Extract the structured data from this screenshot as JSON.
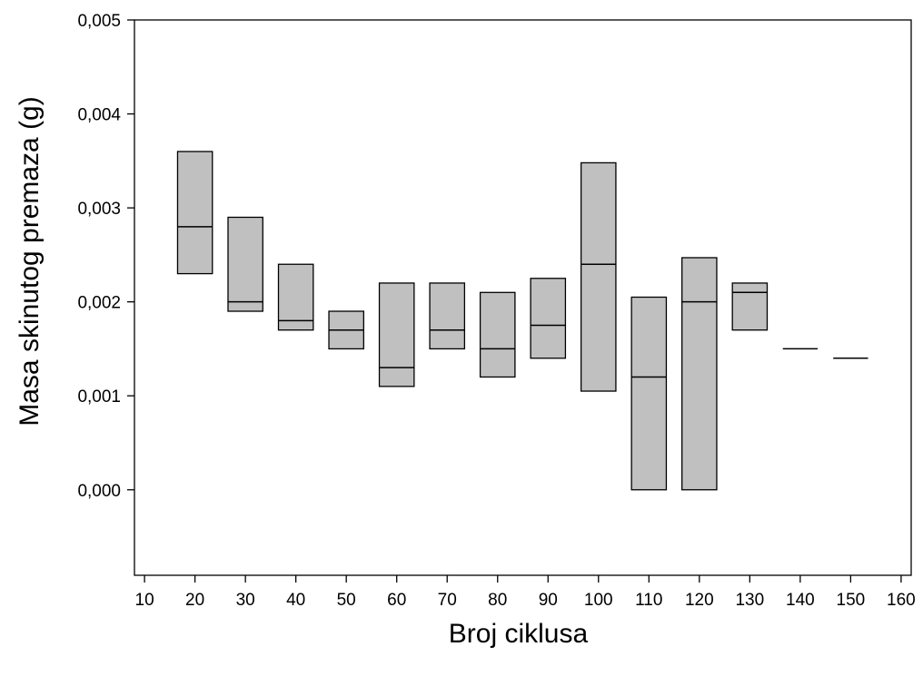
{
  "chart_data": {
    "type": "box",
    "xlabel": "Broj ciklusa",
    "ylabel": "Masa skinutog premaza (g)",
    "xlim": [
      8,
      162
    ],
    "ylim": [
      -0.00091,
      0.005
    ],
    "x_ticks": [
      10,
      20,
      30,
      40,
      50,
      60,
      70,
      80,
      90,
      100,
      110,
      120,
      130,
      140,
      150,
      160
    ],
    "x_tick_labels": [
      "10",
      "20",
      "30",
      "40",
      "50",
      "60",
      "70",
      "80",
      "90",
      "100",
      "110",
      "120",
      "130",
      "140",
      "150",
      "160"
    ],
    "y_ticks": [
      0,
      0.001,
      0.002,
      0.003,
      0.004,
      0.005
    ],
    "y_tick_labels": [
      "0,000",
      "0,001",
      "0,002",
      "0,003",
      "0,004",
      "0,005"
    ],
    "box_fill": "#c0c0c0",
    "line_color": "#000000",
    "boxes": [
      {
        "x": 20,
        "q1": 0.0023,
        "median": 0.0028,
        "q3": 0.0036
      },
      {
        "x": 30,
        "q1": 0.0019,
        "median": 0.002,
        "q3": 0.0029
      },
      {
        "x": 40,
        "q1": 0.0017,
        "median": 0.0018,
        "q3": 0.0024
      },
      {
        "x": 50,
        "q1": 0.0015,
        "median": 0.0017,
        "q3": 0.0019
      },
      {
        "x": 60,
        "q1": 0.0011,
        "median": 0.0013,
        "q3": 0.0022
      },
      {
        "x": 70,
        "q1": 0.0015,
        "median": 0.0017,
        "q3": 0.0022
      },
      {
        "x": 80,
        "q1": 0.0012,
        "median": 0.0015,
        "q3": 0.0021
      },
      {
        "x": 90,
        "q1": 0.0014,
        "median": 0.00175,
        "q3": 0.00225
      },
      {
        "x": 100,
        "q1": 0.00105,
        "median": 0.0024,
        "q3": 0.00348
      },
      {
        "x": 110,
        "q1": 0.0,
        "median": 0.0012,
        "q3": 0.00205
      },
      {
        "x": 120,
        "q1": 0.0,
        "median": 0.002,
        "q3": 0.00247
      },
      {
        "x": 130,
        "q1": 0.0017,
        "median": 0.0021,
        "q3": 0.0022
      },
      {
        "x": 140,
        "q1": 0.0015,
        "median": 0.0015,
        "q3": 0.0015
      },
      {
        "x": 150,
        "q1": 0.0014,
        "median": 0.0014,
        "q3": 0.0014
      }
    ]
  }
}
